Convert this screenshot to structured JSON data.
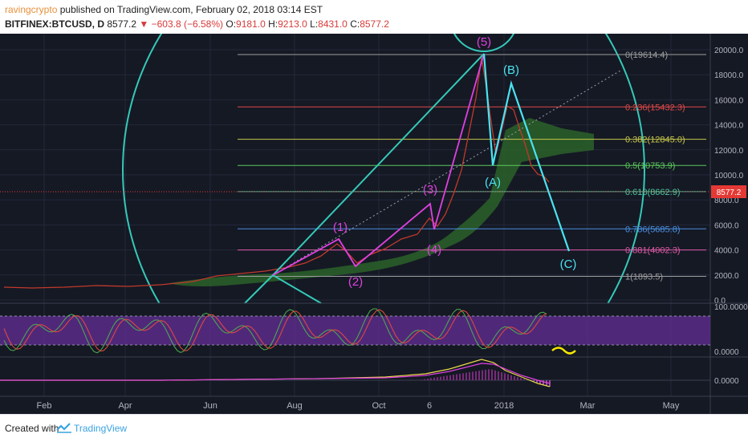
{
  "header": {
    "author": "ravingcrypto",
    "published_text": "published on TradingView.com, February 02, 2018 03:14 EST",
    "symbol": "BITFINEX:BTCUSD, D",
    "last": "8577.2",
    "change": "−603.8 (−6.58%)",
    "open_label": "O:",
    "open": "9181.0",
    "high_label": "H:",
    "high": "9213.0",
    "low_label": "L:",
    "low": "8431.0",
    "close_label": "C:",
    "close": "8577.2"
  },
  "footer": {
    "created_with": "Created with",
    "brand": "TradingView"
  },
  "colors": {
    "background": "#151924",
    "wave_magenta": "#e040e0",
    "correction_cyan": "#4ae3f0",
    "circle_teal": "#35c9b8",
    "cloud_green": "#2e6b2a",
    "stoch_band": "#5b2c8a",
    "price_tag": "#e53935"
  },
  "chart_data": {
    "type": "line",
    "price_scale": {
      "ticks": [
        "20000.0",
        "18000.0",
        "16000.0",
        "14000.0",
        "12000.0",
        "10000.0",
        "8000.0",
        "6000.0",
        "4000.0",
        "2000.0",
        "0.0"
      ],
      "tick_values": [
        20000,
        18000,
        16000,
        14000,
        12000,
        10000,
        8000,
        6000,
        4000,
        2000,
        0
      ],
      "current_price_label": "8577.2",
      "current_price": 8577.2
    },
    "time_axis": [
      "Feb",
      "Apr",
      "Jun",
      "Aug",
      "Oct",
      "6",
      "2018",
      "Mar",
      "May"
    ],
    "fibonacci_levels": [
      {
        "label": "0(19614.4)",
        "value": 19614.4,
        "color": "#9e9e9e"
      },
      {
        "label": "0.236(15432.3)",
        "value": 15432.3,
        "color": "#e04848"
      },
      {
        "label": "0.382(12845.0)",
        "value": 12845.0,
        "color": "#c8c84a"
      },
      {
        "label": "0.5(10753.9)",
        "value": 10753.9,
        "color": "#5bc85b"
      },
      {
        "label": "0.618(8662.9)",
        "value": 8662.9,
        "color": "#4ac8a0"
      },
      {
        "label": "0.786(5685.8)",
        "value": 5685.8,
        "color": "#4a90e2"
      },
      {
        "label": "0.881(4002.3)",
        "value": 4002.3,
        "color": "#e05aa8"
      },
      {
        "label": "1(1893.5)",
        "value": 1893.5,
        "color": "#9e9e9e"
      }
    ],
    "impulse_waves": [
      {
        "label": "(1)",
        "value": 4900
      },
      {
        "label": "(2)",
        "value": 2800
      },
      {
        "label": "(3)",
        "value": 7800
      },
      {
        "label": "(4)",
        "value": 5400
      },
      {
        "label": "(5)",
        "value": 19614
      }
    ],
    "correction_waves": [
      {
        "label": "(A)",
        "value": 10800
      },
      {
        "label": "(B)",
        "value": 17200
      },
      {
        "label": "(C)",
        "value": 4000
      }
    ],
    "stochastic_scale": [
      "100.0000",
      "0.0000"
    ],
    "macd_scale": [
      "0.0000"
    ]
  }
}
